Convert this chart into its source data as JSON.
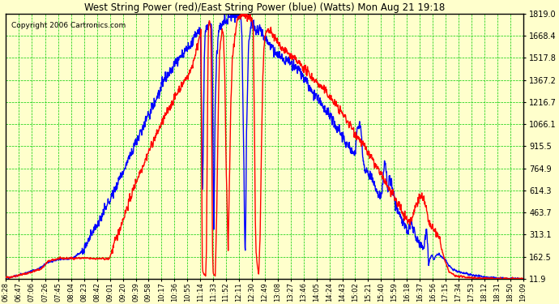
{
  "title": "West String Power (red)/East String Power (blue) (Watts) Mon Aug 21 19:18",
  "copyright": "Copyright 2006 Cartronics.com",
  "bg_color": "#FFFFCC",
  "grid_color": "#00CC00",
  "y_ticks": [
    11.9,
    162.5,
    313.1,
    463.7,
    614.3,
    764.9,
    915.5,
    1066.1,
    1216.7,
    1367.2,
    1517.8,
    1668.4,
    1819.0
  ],
  "x_labels": [
    "06:28",
    "06:47",
    "07:06",
    "07:26",
    "07:45",
    "08:04",
    "08:23",
    "08:42",
    "09:01",
    "09:20",
    "09:39",
    "09:58",
    "10:17",
    "10:36",
    "10:55",
    "11:14",
    "11:33",
    "11:52",
    "12:11",
    "12:30",
    "12:49",
    "13:08",
    "13:27",
    "13:46",
    "14:05",
    "14:24",
    "14:43",
    "15:02",
    "15:21",
    "15:40",
    "15:59",
    "16:18",
    "16:37",
    "16:56",
    "17:15",
    "17:34",
    "17:53",
    "18:12",
    "18:31",
    "18:50",
    "19:09"
  ],
  "ymin": 11.9,
  "ymax": 1819.0,
  "line_width": 1.0
}
